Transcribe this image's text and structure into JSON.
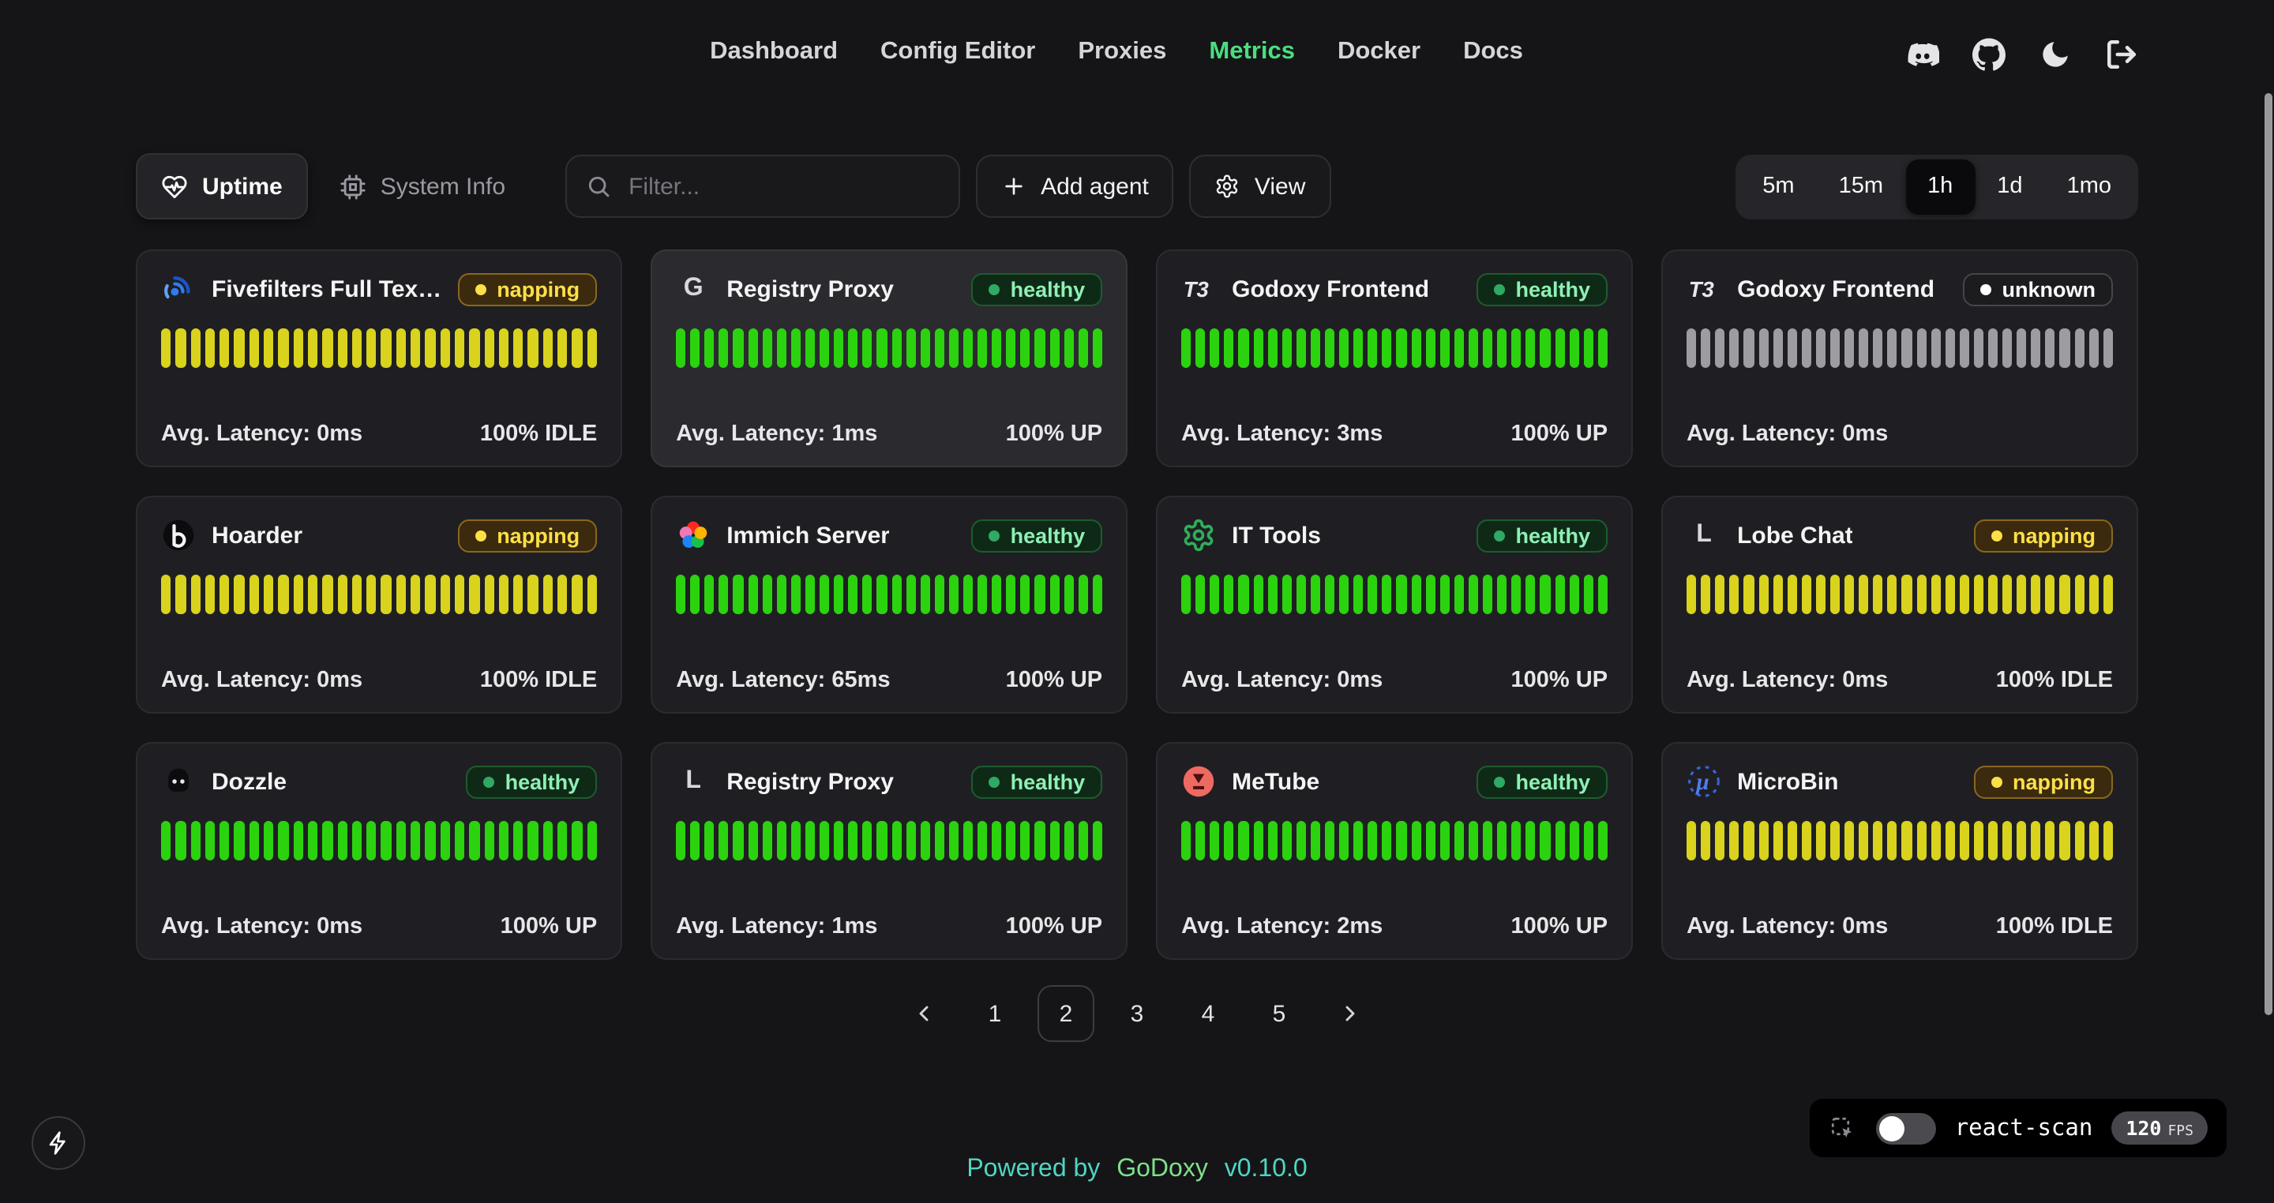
{
  "nav": {
    "links": [
      {
        "label": "Dashboard",
        "active": false
      },
      {
        "label": "Config Editor",
        "active": false
      },
      {
        "label": "Proxies",
        "active": false
      },
      {
        "label": "Metrics",
        "active": true
      },
      {
        "label": "Docker",
        "active": false
      },
      {
        "label": "Docs",
        "active": false
      }
    ],
    "icons": [
      {
        "name": "discord-icon"
      },
      {
        "name": "github-icon"
      },
      {
        "name": "moon-icon"
      },
      {
        "name": "logout-icon"
      }
    ],
    "active_color": "#4ade80"
  },
  "toolbar": {
    "tabs": [
      {
        "label": "Uptime",
        "icon": "heart-pulse-icon",
        "active": true
      },
      {
        "label": "System Info",
        "icon": "cpu-icon",
        "active": false
      }
    ],
    "filter_placeholder": "Filter...",
    "add_agent_label": "Add agent",
    "view_label": "View",
    "time_ranges": [
      {
        "label": "5m",
        "active": false
      },
      {
        "label": "15m",
        "active": false
      },
      {
        "label": "1h",
        "active": true
      },
      {
        "label": "1d",
        "active": false
      },
      {
        "label": "1mo",
        "active": false
      }
    ]
  },
  "status_styles": {
    "healthy": {
      "bg": "#0f2917",
      "border": "#1d5c2e",
      "text": "#8ef0b4",
      "dot": "#2fa963",
      "bar": "#2bd30e"
    },
    "napping": {
      "bg": "#3b2a0e",
      "border": "#8a671d",
      "text": "#fde047",
      "dot": "#fde047",
      "bar": "#d9d31d"
    },
    "unknown": {
      "bg": "#1c1c1f",
      "border": "#45454b",
      "text": "#fafafa",
      "dot": "#ffffff",
      "bar": "#9d9da1"
    }
  },
  "cards": [
    {
      "name": "Fivefilters Full Tex…",
      "icon": "fivefilters-icon",
      "status": "napping",
      "latency": "Avg. Latency: 0ms",
      "uptime": "100% IDLE",
      "bars": 30,
      "highlighted": false
    },
    {
      "name": "Registry Proxy",
      "icon": "letter-g-icon",
      "status": "healthy",
      "latency": "Avg. Latency: 1ms",
      "uptime": "100% UP",
      "bars": 30,
      "highlighted": true
    },
    {
      "name": "Godoxy Frontend",
      "icon": "t3-icon",
      "status": "healthy",
      "latency": "Avg. Latency: 3ms",
      "uptime": "100% UP",
      "bars": 30,
      "highlighted": false
    },
    {
      "name": "Godoxy Frontend",
      "icon": "t3-icon",
      "status": "unknown",
      "latency": "Avg. Latency: 0ms",
      "uptime": "",
      "bars": 30,
      "highlighted": false
    },
    {
      "name": "Hoarder",
      "icon": "hoarder-icon",
      "status": "napping",
      "latency": "Avg. Latency: 0ms",
      "uptime": "100% IDLE",
      "bars": 30,
      "highlighted": false
    },
    {
      "name": "Immich Server",
      "icon": "immich-icon",
      "status": "healthy",
      "latency": "Avg. Latency: 65ms",
      "uptime": "100% UP",
      "bars": 30,
      "highlighted": false
    },
    {
      "name": "IT Tools",
      "icon": "it-tools-icon",
      "status": "healthy",
      "latency": "Avg. Latency: 0ms",
      "uptime": "100% UP",
      "bars": 30,
      "highlighted": false
    },
    {
      "name": "Lobe Chat",
      "icon": "letter-l-icon",
      "status": "napping",
      "latency": "Avg. Latency: 0ms",
      "uptime": "100% IDLE",
      "bars": 30,
      "highlighted": false
    },
    {
      "name": "Dozzle",
      "icon": "dozzle-icon",
      "status": "healthy",
      "latency": "Avg. Latency: 0ms",
      "uptime": "100% UP",
      "bars": 30,
      "highlighted": false
    },
    {
      "name": "Registry Proxy",
      "icon": "letter-l-icon",
      "status": "healthy",
      "latency": "Avg. Latency: 1ms",
      "uptime": "100% UP",
      "bars": 30,
      "highlighted": false
    },
    {
      "name": "MeTube",
      "icon": "metube-icon",
      "status": "healthy",
      "latency": "Avg. Latency: 2ms",
      "uptime": "100% UP",
      "bars": 30,
      "highlighted": false
    },
    {
      "name": "MicroBin",
      "icon": "microbin-icon",
      "status": "napping",
      "latency": "Avg. Latency: 0ms",
      "uptime": "100% IDLE",
      "bars": 30,
      "highlighted": false
    }
  ],
  "pagination": {
    "pages": [
      "1",
      "2",
      "3",
      "4",
      "5"
    ],
    "current": "2"
  },
  "footer": {
    "powered_by": "Powered by",
    "brand": "GoDoxy",
    "version": "v0.10.0"
  },
  "react_scan": {
    "label": "react-scan",
    "fps": "120",
    "fps_unit": "FPS",
    "enabled": false
  }
}
